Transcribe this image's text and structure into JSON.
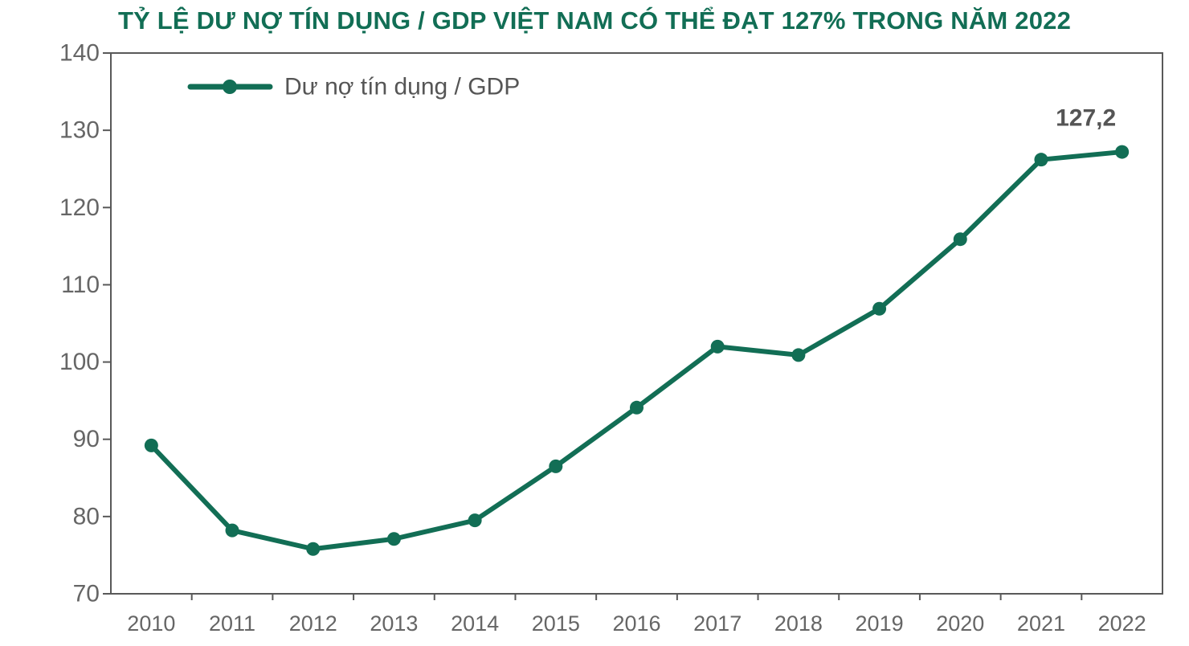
{
  "title": "TỶ LỆ DƯ NỢ TÍN DỤNG / GDP VIỆT NAM CÓ THỂ ĐẠT 127% TRONG NĂM 2022",
  "colors": {
    "series": "#126e55",
    "title": "#126e55",
    "axis": "#595959",
    "text": "#666666"
  },
  "chart_data": {
    "type": "line",
    "title": "TỶ LỆ DƯ NỢ TÍN DỤNG / GDP VIỆT NAM CÓ THỂ ĐẠT 127% TRONG NĂM 2022",
    "xlabel": "",
    "ylabel": "",
    "categories": [
      "2010",
      "2011",
      "2012",
      "2013",
      "2014",
      "2015",
      "2016",
      "2017",
      "2018",
      "2019",
      "2020",
      "2021",
      "2022"
    ],
    "ylim": [
      70,
      140
    ],
    "yticks": [
      "70",
      "80",
      "90",
      "100",
      "110",
      "120",
      "130",
      "140"
    ],
    "grid": false,
    "legend_position": "top-left",
    "series": [
      {
        "name": "Dư nợ tín dụng / GDP",
        "values": [
          89.2,
          78.2,
          75.8,
          77.1,
          79.5,
          86.5,
          94.1,
          102.0,
          100.9,
          106.9,
          115.9,
          126.2,
          127.2
        ],
        "marker": "circle"
      }
    ],
    "annotations": [
      {
        "category": "2022",
        "text": "127,2"
      }
    ]
  }
}
